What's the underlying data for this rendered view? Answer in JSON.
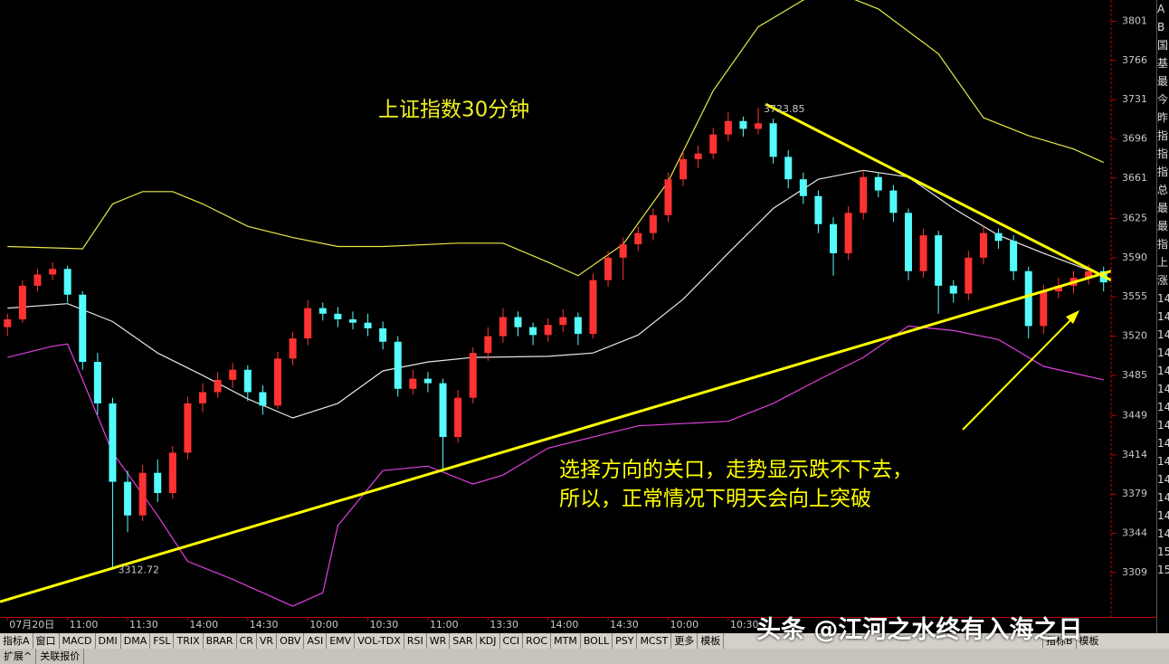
{
  "chart_data": {
    "type": "candlestick",
    "title": "上证指数30分钟",
    "annotations": [
      "选择方向的关口，走势显示跌不下去，",
      "所以，正常情况下明天会向上突破"
    ],
    "colors": {
      "up": "#ff3232",
      "down": "#54fcfc"
    },
    "xlim": [
      -0.5,
      73.5
    ],
    "ylim": [
      3271,
      3820
    ],
    "yticks": [
      3309,
      3344,
      3379,
      3414,
      3449,
      3485,
      3520,
      3555,
      3590,
      3625,
      3661,
      3696,
      3731,
      3766,
      3801
    ],
    "xticks": [
      {
        "value": 0,
        "label": "07月20日"
      },
      {
        "value": 4,
        "label": "11:00"
      },
      {
        "value": 8,
        "label": "11:30"
      },
      {
        "value": 12,
        "label": "14:00"
      },
      {
        "value": 16,
        "label": "14:30"
      },
      {
        "value": 20,
        "label": "10:00"
      },
      {
        "value": 24,
        "label": "10:30"
      },
      {
        "value": 28,
        "label": "11:00"
      },
      {
        "value": 32,
        "label": "13:30"
      },
      {
        "value": 36,
        "label": "14:00"
      },
      {
        "value": 40,
        "label": "14:30"
      },
      {
        "value": 44,
        "label": "10:00"
      },
      {
        "value": 48,
        "label": "10:30"
      }
    ],
    "candles": [
      [
        3528,
        3540,
        3520,
        3535
      ],
      [
        3535,
        3570,
        3532,
        3565
      ],
      [
        3565,
        3580,
        3560,
        3575
      ],
      [
        3575,
        3586,
        3570,
        3580
      ],
      [
        3580,
        3583,
        3550,
        3557
      ],
      [
        3557,
        3560,
        3490,
        3497
      ],
      [
        3497,
        3505,
        3450,
        3460
      ],
      [
        3460,
        3465,
        3312.72,
        3390
      ],
      [
        3390,
        3400,
        3345,
        3360
      ],
      [
        3360,
        3405,
        3355,
        3398
      ],
      [
        3398,
        3410,
        3372,
        3380
      ],
      [
        3380,
        3422,
        3375,
        3416
      ],
      [
        3416,
        3466,
        3410,
        3460
      ],
      [
        3460,
        3478,
        3452,
        3470
      ],
      [
        3470,
        3488,
        3465,
        3481
      ],
      [
        3481,
        3496,
        3474,
        3490
      ],
      [
        3490,
        3494,
        3462,
        3470
      ],
      [
        3470,
        3476,
        3450,
        3458
      ],
      [
        3458,
        3506,
        3455,
        3500
      ],
      [
        3500,
        3524,
        3494,
        3518
      ],
      [
        3518,
        3552,
        3512,
        3545
      ],
      [
        3545,
        3550,
        3534,
        3540
      ],
      [
        3540,
        3546,
        3528,
        3535
      ],
      [
        3535,
        3542,
        3526,
        3532
      ],
      [
        3532,
        3540,
        3520,
        3527
      ],
      [
        3527,
        3533,
        3508,
        3515
      ],
      [
        3515,
        3520,
        3466,
        3473
      ],
      [
        3473,
        3490,
        3468,
        3482
      ],
      [
        3482,
        3488,
        3470,
        3478
      ],
      [
        3478,
        3482,
        3400,
        3430
      ],
      [
        3430,
        3472,
        3425,
        3465
      ],
      [
        3465,
        3510,
        3460,
        3505
      ],
      [
        3505,
        3528,
        3498,
        3520
      ],
      [
        3520,
        3545,
        3514,
        3537
      ],
      [
        3537,
        3542,
        3520,
        3528
      ],
      [
        3528,
        3532,
        3512,
        3521
      ],
      [
        3521,
        3536,
        3515,
        3530
      ],
      [
        3530,
        3544,
        3524,
        3537
      ],
      [
        3537,
        3541,
        3512,
        3522
      ],
      [
        3522,
        3576,
        3518,
        3570
      ],
      [
        3570,
        3596,
        3564,
        3590
      ],
      [
        3590,
        3608,
        3570,
        3602
      ],
      [
        3602,
        3618,
        3596,
        3612
      ],
      [
        3612,
        3634,
        3606,
        3628
      ],
      [
        3628,
        3666,
        3622,
        3660
      ],
      [
        3660,
        3685,
        3654,
        3678
      ],
      [
        3678,
        3690,
        3670,
        3683
      ],
      [
        3683,
        3706,
        3678,
        3700
      ],
      [
        3700,
        3720,
        3694,
        3712
      ],
      [
        3712,
        3716,
        3698,
        3705
      ],
      [
        3705,
        3723.85,
        3700,
        3710
      ],
      [
        3710,
        3714,
        3674,
        3680
      ],
      [
        3680,
        3686,
        3652,
        3660
      ],
      [
        3660,
        3666,
        3638,
        3645
      ],
      [
        3645,
        3650,
        3612,
        3620
      ],
      [
        3620,
        3626,
        3574,
        3594
      ],
      [
        3594,
        3636,
        3588,
        3630
      ],
      [
        3630,
        3668,
        3624,
        3662
      ],
      [
        3662,
        3666,
        3644,
        3650
      ],
      [
        3650,
        3655,
        3622,
        3630
      ],
      [
        3630,
        3634,
        3570,
        3578
      ],
      [
        3578,
        3616,
        3572,
        3610
      ],
      [
        3610,
        3614,
        3540,
        3565
      ],
      [
        3565,
        3570,
        3550,
        3558
      ],
      [
        3558,
        3596,
        3552,
        3590
      ],
      [
        3590,
        3618,
        3584,
        3612
      ],
      [
        3612,
        3616,
        3598,
        3605
      ],
      [
        3605,
        3610,
        3570,
        3578
      ],
      [
        3578,
        3582,
        3518,
        3529
      ],
      [
        3529,
        3566,
        3522,
        3560
      ],
      [
        3560,
        3572,
        3554,
        3565
      ],
      [
        3565,
        3578,
        3558,
        3572
      ],
      [
        3572,
        3584,
        3566,
        3578
      ],
      [
        3578,
        3582,
        3560,
        3568
      ]
    ],
    "series": [
      {
        "color": "#e8e84a",
        "x": [
          0,
          5,
          7,
          9,
          11,
          13,
          16,
          19,
          22,
          25,
          30,
          33,
          36,
          38,
          41,
          44,
          47,
          50,
          53,
          55,
          58,
          62,
          65,
          68,
          71,
          73
        ],
        "values": [
          3600,
          3598,
          3638,
          3649,
          3649,
          3638,
          3618,
          3608,
          3600,
          3600,
          3603,
          3603,
          3586,
          3574,
          3602,
          3658,
          3739,
          3796,
          3820,
          3828,
          3812,
          3772,
          3715,
          3699,
          3687,
          3675
        ]
      },
      {
        "color": "#e6e6e6",
        "x": [
          0,
          4,
          7,
          10,
          13,
          16,
          19,
          22,
          25,
          28,
          31,
          36,
          39,
          42,
          45,
          48,
          51,
          54,
          57,
          60,
          63,
          66,
          69,
          73
        ],
        "values": [
          3545,
          3549,
          3533,
          3505,
          3485,
          3464,
          3447,
          3460,
          3489,
          3497,
          3501,
          3502,
          3505,
          3521,
          3553,
          3594,
          3634,
          3660,
          3668,
          3662,
          3634,
          3610,
          3594,
          3574
        ]
      },
      {
        "color": "#e040e0",
        "x": [
          0,
          3,
          4,
          5,
          7,
          10,
          12,
          15,
          19,
          21,
          22,
          25,
          28,
          31,
          33,
          36,
          42,
          48,
          51,
          54,
          57,
          60,
          63,
          66,
          69,
          73
        ],
        "values": [
          3501,
          3511,
          3513,
          3481,
          3416,
          3360,
          3319,
          3303,
          3279,
          3291,
          3351,
          3400,
          3404,
          3388,
          3396,
          3420,
          3440,
          3444,
          3460,
          3481,
          3501,
          3529,
          3525,
          3517,
          3493,
          3481
        ]
      }
    ],
    "trendlines": [
      {
        "color": "#ffff00",
        "x": [
          -0.5,
          73.5
        ],
        "y": [
          3283,
          3578
        ]
      },
      {
        "color": "#ffff00",
        "x": [
          50.5,
          73.5
        ],
        "y": [
          3727,
          3570
        ]
      }
    ]
  },
  "toolbar": {
    "tabs": [
      "指标A",
      "窗口",
      "MACD",
      "DMI",
      "DMA",
      "FSL",
      "TRIX",
      "BRAR",
      "CR",
      "VR",
      "OBV",
      "ASI",
      "EMV",
      "VOL-TDX",
      "RSI",
      "WR",
      "SAR",
      "KDJ",
      "CCI",
      "ROC",
      "MTM",
      "BOLL",
      "PSY",
      "MCST",
      "更多",
      "模板"
    ],
    "right": [
      "指标B",
      "模板"
    ],
    "bottom": [
      "扩展^",
      "关联报价"
    ]
  },
  "side_panel": [
    "A",
    "B",
    "国",
    "基",
    "最",
    "今",
    "昨",
    "指",
    "指",
    "指",
    "总",
    "最",
    "最",
    "指",
    "上",
    "涨",
    "14",
    "14",
    "14",
    "14",
    "14",
    "14",
    "14",
    "14",
    "14",
    "14",
    "14",
    "14",
    "14",
    "14",
    "15",
    "15"
  ],
  "watermark": "头条 @江河之水终有入海之日"
}
